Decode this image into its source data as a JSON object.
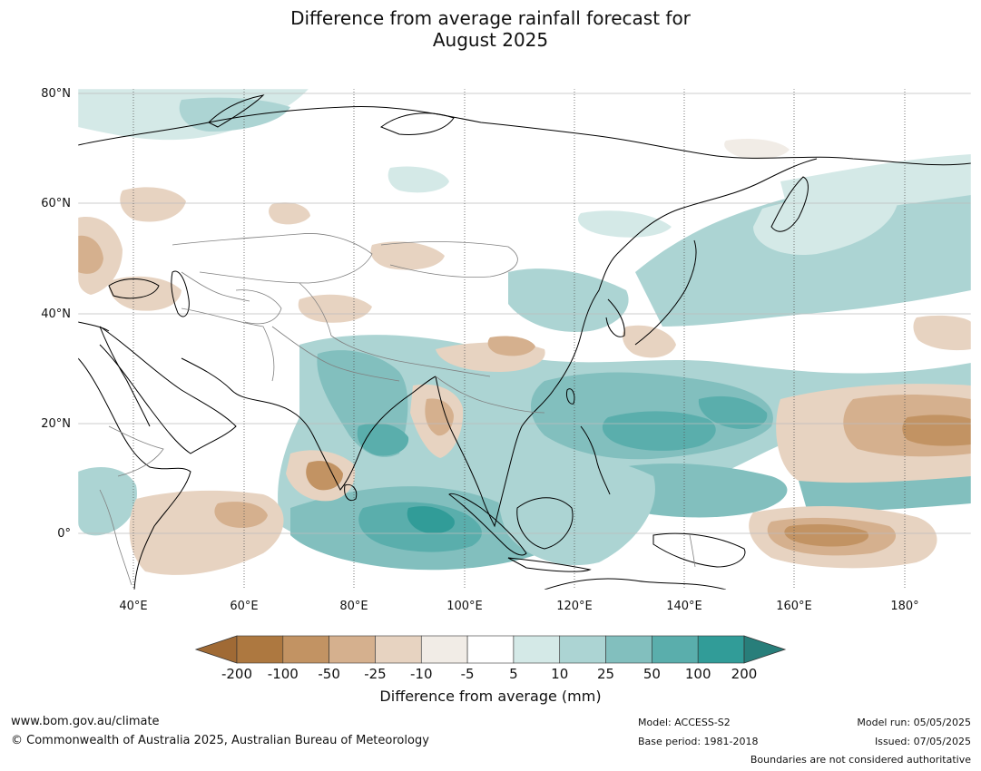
{
  "title": {
    "line1": "Difference from average rainfall forecast for",
    "line2": "August 2025"
  },
  "map": {
    "lat_labels": [
      "80°N",
      "60°N",
      "40°N",
      "20°N",
      "0°"
    ],
    "lon_labels": [
      "40°E",
      "60°E",
      "80°E",
      "100°E",
      "120°E",
      "140°E",
      "160°E",
      "180°"
    ],
    "extent": {
      "lon": [
        30,
        192
      ],
      "lat": [
        -10,
        81
      ]
    }
  },
  "colorbar": {
    "title": "Difference from average (mm)",
    "ticks": [
      "-200",
      "-100",
      "-50",
      "-25",
      "-10",
      "-5",
      "5",
      "10",
      "25",
      "50",
      "100",
      "200"
    ],
    "colors": [
      "#a06a35",
      "#ad7840",
      "#c29363",
      "#d5b08e",
      "#e7d3c1",
      "#f1ece6",
      "#ffffff",
      "#d4e9e7",
      "#acd4d3",
      "#82bfbe",
      "#5aaeac",
      "#319c98",
      "#287e7a"
    ]
  },
  "footer": {
    "url": "www.bom.gov.au/climate",
    "copyright": "© Commonwealth of Australia 2025, Australian Bureau of Meteorology",
    "model": "Model: ACCESS-S2",
    "base_period": "Base period: 1981-2018",
    "model_run": "Model run: 05/05/2025",
    "issued": "Issued: 07/05/2025",
    "disclaimer": "Boundaries are not considered authoritative"
  }
}
